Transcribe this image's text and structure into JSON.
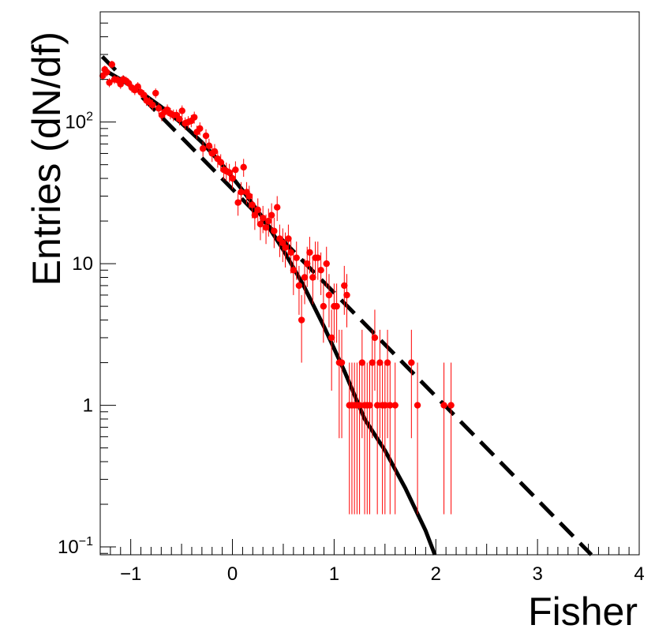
{
  "chart_data": {
    "type": "scatter",
    "title": "",
    "xlabel": "Fisher",
    "ylabel": "Entries (dN/df)",
    "xlim": [
      -1.3,
      4.0
    ],
    "ylim": [
      0.088,
      600
    ],
    "xscale": "linear",
    "yscale": "log",
    "grid": false,
    "x_ticks": [
      -1,
      0,
      1,
      2,
      3,
      4
    ],
    "x_tick_labels": [
      "−1",
      "0",
      "1",
      "2",
      "3",
      "4"
    ],
    "y_ticks": [
      {
        "value": 0.1,
        "base": "10",
        "exp": "−1"
      },
      {
        "value": 1,
        "base": "1",
        "exp": ""
      },
      {
        "value": 10,
        "base": "10",
        "exp": ""
      },
      {
        "value": 100,
        "base": "10",
        "exp": "2"
      }
    ],
    "colors": {
      "data": "#ff0000",
      "fit": "#000000",
      "frame": "#000000"
    },
    "series": [
      {
        "kind": "points_with_errors",
        "color": "#ff0000",
        "points": [
          {
            "x": -1.275,
            "y": 212
          },
          {
            "x": -1.255,
            "y": 235
          },
          {
            "x": -1.235,
            "y": 225
          },
          {
            "x": -1.21,
            "y": 190
          },
          {
            "x": -1.185,
            "y": 255
          },
          {
            "x": -1.16,
            "y": 200
          },
          {
            "x": -1.13,
            "y": 198
          },
          {
            "x": -1.1,
            "y": 185
          },
          {
            "x": -1.075,
            "y": 200
          },
          {
            "x": -1.045,
            "y": 195
          },
          {
            "x": -1.02,
            "y": 188
          },
          {
            "x": -0.99,
            "y": 175
          },
          {
            "x": -0.96,
            "y": 168
          },
          {
            "x": -0.93,
            "y": 178
          },
          {
            "x": -0.9,
            "y": 162
          },
          {
            "x": -0.87,
            "y": 155
          },
          {
            "x": -0.845,
            "y": 142
          },
          {
            "x": -0.815,
            "y": 138
          },
          {
            "x": -0.785,
            "y": 132
          },
          {
            "x": -0.755,
            "y": 160
          },
          {
            "x": -0.725,
            "y": 125
          },
          {
            "x": -0.695,
            "y": 112
          },
          {
            "x": -0.665,
            "y": 118
          },
          {
            "x": -0.64,
            "y": 122
          },
          {
            "x": -0.61,
            "y": 115
          },
          {
            "x": -0.58,
            "y": 112
          },
          {
            "x": -0.55,
            "y": 112
          },
          {
            "x": -0.52,
            "y": 105
          },
          {
            "x": -0.495,
            "y": 120
          },
          {
            "x": -0.465,
            "y": 98
          },
          {
            "x": -0.435,
            "y": 100
          },
          {
            "x": -0.405,
            "y": 102
          },
          {
            "x": -0.375,
            "y": 108
          },
          {
            "x": -0.35,
            "y": 85
          },
          {
            "x": -0.32,
            "y": 90
          },
          {
            "x": -0.29,
            "y": 65
          },
          {
            "x": -0.26,
            "y": 80
          },
          {
            "x": -0.23,
            "y": 68
          },
          {
            "x": -0.2,
            "y": 60
          },
          {
            "x": -0.175,
            "y": 62
          },
          {
            "x": -0.145,
            "y": 55
          },
          {
            "x": -0.115,
            "y": 52
          },
          {
            "x": -0.085,
            "y": 46
          },
          {
            "x": -0.06,
            "y": 45
          },
          {
            "x": -0.03,
            "y": 44
          },
          {
            "x": 0.0,
            "y": 40
          },
          {
            "x": 0.03,
            "y": 46
          },
          {
            "x": 0.055,
            "y": 27
          },
          {
            "x": 0.085,
            "y": 32
          },
          {
            "x": 0.11,
            "y": 48
          },
          {
            "x": 0.14,
            "y": 32
          },
          {
            "x": 0.165,
            "y": 30
          },
          {
            "x": 0.195,
            "y": 26
          },
          {
            "x": 0.22,
            "y": 22
          },
          {
            "x": 0.25,
            "y": 24
          },
          {
            "x": 0.275,
            "y": 19
          },
          {
            "x": 0.3,
            "y": 21
          },
          {
            "x": 0.33,
            "y": 18
          },
          {
            "x": 0.355,
            "y": 20
          },
          {
            "x": 0.385,
            "y": 22
          },
          {
            "x": 0.41,
            "y": 17
          },
          {
            "x": 0.44,
            "y": 25
          },
          {
            "x": 0.465,
            "y": 15
          },
          {
            "x": 0.495,
            "y": 14
          },
          {
            "x": 0.52,
            "y": 13
          },
          {
            "x": 0.55,
            "y": 15
          },
          {
            "x": 0.575,
            "y": 12
          },
          {
            "x": 0.6,
            "y": 9
          },
          {
            "x": 0.63,
            "y": 11
          },
          {
            "x": 0.655,
            "y": 7
          },
          {
            "x": 0.68,
            "y": 4
          },
          {
            "x": 0.71,
            "y": 8
          },
          {
            "x": 0.735,
            "y": 10
          },
          {
            "x": 0.76,
            "y": 12
          },
          {
            "x": 0.79,
            "y": 8
          },
          {
            "x": 0.815,
            "y": 11
          },
          {
            "x": 0.84,
            "y": 11
          },
          {
            "x": 0.87,
            "y": 9
          },
          {
            "x": 0.895,
            "y": 5
          },
          {
            "x": 0.925,
            "y": 10
          },
          {
            "x": 0.95,
            "y": 6
          },
          {
            "x": 0.975,
            "y": 3
          },
          {
            "x": 1.0,
            "y": 5
          },
          {
            "x": 1.025,
            "y": 5
          },
          {
            "x": 1.05,
            "y": 2
          },
          {
            "x": 1.075,
            "y": 2
          },
          {
            "x": 1.1,
            "y": 7
          },
          {
            "x": 1.125,
            "y": 6
          },
          {
            "x": 1.15,
            "y": 1
          },
          {
            "x": 1.175,
            "y": 1
          },
          {
            "x": 1.2,
            "y": 1
          },
          {
            "x": 1.225,
            "y": 1
          },
          {
            "x": 1.25,
            "y": 1
          },
          {
            "x": 1.275,
            "y": 2
          },
          {
            "x": 1.3,
            "y": 1
          },
          {
            "x": 1.325,
            "y": 1
          },
          {
            "x": 1.35,
            "y": 1
          },
          {
            "x": 1.375,
            "y": 2
          },
          {
            "x": 1.4,
            "y": 3
          },
          {
            "x": 1.425,
            "y": 1
          },
          {
            "x": 1.45,
            "y": 2
          },
          {
            "x": 1.475,
            "y": 1
          },
          {
            "x": 1.5,
            "y": 1
          },
          {
            "x": 1.525,
            "y": 2
          },
          {
            "x": 1.55,
            "y": 1
          },
          {
            "x": 1.6,
            "y": 1
          },
          {
            "x": 1.76,
            "y": 2
          },
          {
            "x": 1.82,
            "y": 1
          },
          {
            "x": 2.08,
            "y": 1
          },
          {
            "x": 2.15,
            "y": 1
          }
        ]
      },
      {
        "kind": "fit_curve",
        "style": "solid",
        "color": "#000000",
        "points": [
          {
            "x": -1.28,
            "y": 238
          },
          {
            "x": -1.1,
            "y": 200
          },
          {
            "x": -0.9,
            "y": 162
          },
          {
            "x": -0.7,
            "y": 128
          },
          {
            "x": -0.5,
            "y": 98
          },
          {
            "x": -0.3,
            "y": 72
          },
          {
            "x": -0.1,
            "y": 50
          },
          {
            "x": 0.1,
            "y": 33
          },
          {
            "x": 0.3,
            "y": 21
          },
          {
            "x": 0.5,
            "y": 12.5
          },
          {
            "x": 0.7,
            "y": 7
          },
          {
            "x": 0.9,
            "y": 3.6
          },
          {
            "x": 1.1,
            "y": 1.75
          },
          {
            "x": 1.3,
            "y": 0.8
          },
          {
            "x": 1.5,
            "y": 0.48
          },
          {
            "x": 1.7,
            "y": 0.26
          },
          {
            "x": 1.9,
            "y": 0.13
          },
          {
            "x": 1.99,
            "y": 0.088
          }
        ]
      },
      {
        "kind": "fit_curve",
        "style": "dashed",
        "color": "#000000",
        "points": [
          {
            "x": -1.28,
            "y": 290
          },
          {
            "x": 3.53,
            "y": 0.088
          }
        ]
      }
    ]
  }
}
